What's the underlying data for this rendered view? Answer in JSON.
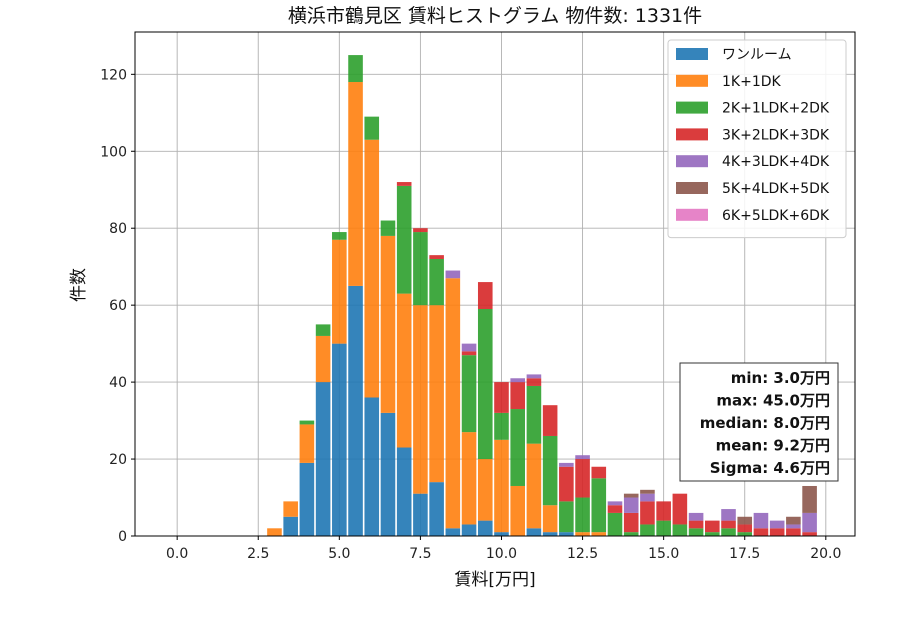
{
  "chart_data": {
    "type": "bar",
    "title": "横浜市鶴見区 賃料ヒストグラム 物件数: 1331件",
    "xlabel": "賃料[万円]",
    "ylabel": "件数",
    "xlim": [
      -1.3,
      20.9
    ],
    "ylim": [
      0,
      131
    ],
    "xticks": [
      0.0,
      2.5,
      5.0,
      7.5,
      10.0,
      12.5,
      15.0,
      17.5,
      20.0
    ],
    "xtick_labels": [
      "0.0",
      "2.5",
      "5.0",
      "7.5",
      "10.0",
      "12.5",
      "15.0",
      "17.5",
      "20.0"
    ],
    "yticks": [
      0,
      20,
      40,
      60,
      80,
      100,
      120
    ],
    "ytick_labels": [
      "0",
      "20",
      "40",
      "60",
      "80",
      "100",
      "120"
    ],
    "grid": true,
    "stacked": true,
    "legend_position": "top-right",
    "bin_width": 0.5,
    "x": [
      3.0,
      3.5,
      4.0,
      4.5,
      5.0,
      5.5,
      6.0,
      6.5,
      7.0,
      7.5,
      8.0,
      8.5,
      9.0,
      9.5,
      10.0,
      10.5,
      11.0,
      11.5,
      12.0,
      12.5,
      13.0,
      13.5,
      14.0,
      14.5,
      15.0,
      15.5,
      16.0,
      16.5,
      17.0,
      17.5,
      18.0,
      18.5,
      19.0,
      19.5
    ],
    "series": [
      {
        "name": "ワンルーム",
        "color": "#1f77b4",
        "values": [
          0,
          5,
          19,
          40,
          50,
          65,
          36,
          32,
          23,
          11,
          14,
          2,
          3,
          4,
          1,
          0,
          2,
          1,
          1,
          0,
          0,
          0,
          0,
          0,
          0,
          0,
          0,
          0,
          0,
          0,
          0,
          0,
          0,
          0
        ]
      },
      {
        "name": "1K+1DK",
        "color": "#ff7f0e",
        "values": [
          2,
          4,
          10,
          12,
          27,
          53,
          67,
          46,
          40,
          49,
          46,
          65,
          24,
          16,
          24,
          13,
          22,
          7,
          0,
          1,
          1,
          0,
          0,
          0,
          0,
          0,
          0,
          0,
          0,
          0,
          0,
          0,
          0,
          0
        ]
      },
      {
        "name": "2K+1LDK+2DK",
        "color": "#2ca02c",
        "values": [
          0,
          0,
          1,
          3,
          2,
          7,
          6,
          4,
          28,
          19,
          12,
          0,
          20,
          39,
          7,
          20,
          15,
          18,
          8,
          9,
          14,
          6,
          1,
          3,
          4,
          3,
          2,
          1,
          2,
          1,
          0,
          0,
          0,
          0
        ]
      },
      {
        "name": "3K+2LDK+3DK",
        "color": "#d62728",
        "values": [
          0,
          0,
          0,
          0,
          0,
          0,
          0,
          0,
          1,
          1,
          1,
          0,
          1,
          7,
          8,
          7,
          2,
          8,
          9,
          10,
          3,
          2,
          5,
          6,
          5,
          8,
          2,
          3,
          2,
          2,
          2,
          2,
          2,
          1
        ]
      },
      {
        "name": "4K+3LDK+4DK",
        "color": "#9467bd",
        "values": [
          0,
          0,
          0,
          0,
          0,
          0,
          0,
          0,
          0,
          0,
          0,
          2,
          2,
          0,
          0,
          1,
          1,
          0,
          1,
          1,
          0,
          1,
          4,
          2,
          0,
          0,
          2,
          0,
          3,
          0,
          4,
          2,
          1,
          5
        ]
      },
      {
        "name": "5K+4LDK+5DK",
        "color": "#8c564b",
        "values": [
          0,
          0,
          0,
          0,
          0,
          0,
          0,
          0,
          0,
          0,
          0,
          0,
          0,
          0,
          0,
          0,
          0,
          0,
          0,
          0,
          0,
          0,
          1,
          1,
          0,
          0,
          0,
          0,
          0,
          2,
          0,
          0,
          2,
          7
        ]
      },
      {
        "name": "6K+5LDK+6DK",
        "color": "#e377c2",
        "values": [
          0,
          0,
          0,
          0,
          0,
          0,
          0,
          0,
          0,
          0,
          0,
          0,
          0,
          0,
          0,
          0,
          0,
          0,
          0,
          0,
          0,
          0,
          0,
          0,
          0,
          0,
          0,
          0,
          0,
          0,
          0,
          0,
          0,
          0
        ]
      }
    ],
    "stats": [
      "min: 3.0万円",
      "max: 45.0万円",
      "median: 8.0万円",
      "mean: 9.2万円",
      "Sigma: 4.6万円"
    ]
  }
}
